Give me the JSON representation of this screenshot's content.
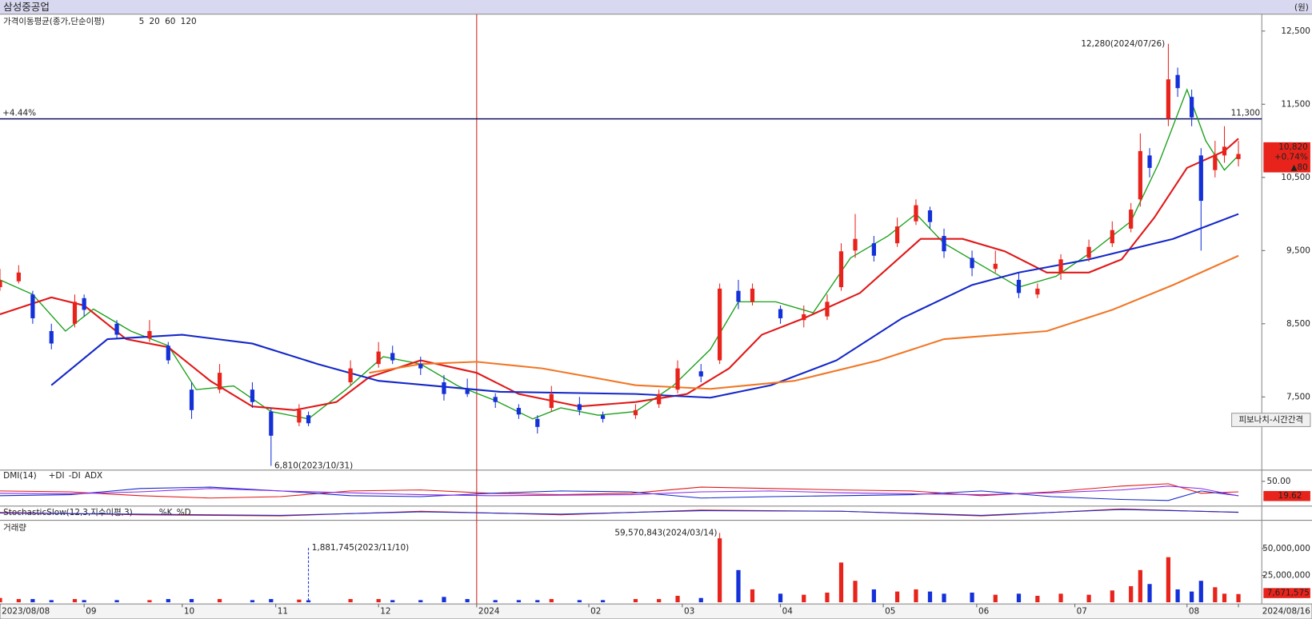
{
  "chart_data": {
    "type": "candlestick",
    "title": "삼성중공업",
    "unit": "(원)",
    "legend_title": "가격이동평균(종가,단순이평)",
    "xlim": [
      0,
      270
    ],
    "xticks": [
      {
        "value": 0,
        "label": "2023/08/08"
      },
      {
        "value": 18,
        "label": "09"
      },
      {
        "value": 39,
        "label": "10"
      },
      {
        "value": 59,
        "label": "11"
      },
      {
        "value": 81,
        "label": "12"
      },
      {
        "value": 102,
        "label": "2024"
      },
      {
        "value": 126,
        "label": "02"
      },
      {
        "value": 146,
        "label": "03"
      },
      {
        "value": 167,
        "label": "04"
      },
      {
        "value": 189,
        "label": "05"
      },
      {
        "value": 209,
        "label": "06"
      },
      {
        "value": 230,
        "label": "07"
      },
      {
        "value": 254,
        "label": "08"
      },
      {
        "value": 265,
        "label": "2024/08/16"
      }
    ],
    "ylim": [
      6500,
      12730
    ],
    "yticks": [
      {
        "value": 12500,
        "label": "12,500"
      },
      {
        "value": 11500,
        "label": "11,500"
      },
      {
        "value": 10500,
        "label": "10,500"
      },
      {
        "value": 9500,
        "label": "9,500"
      },
      {
        "value": 8500,
        "label": "8,500"
      },
      {
        "value": 7500,
        "label": "7,500"
      }
    ],
    "up_color": "#e8231b",
    "down_color": "#1430d8",
    "candles": {
      "x": [
        0,
        4,
        7,
        11,
        16,
        18,
        25,
        32,
        36,
        41,
        47,
        54,
        58,
        64,
        66,
        75,
        81,
        84,
        90,
        95,
        100,
        106,
        111,
        115,
        118,
        124,
        129,
        136,
        141,
        145,
        150,
        154,
        158,
        161,
        167,
        172,
        177,
        180,
        183,
        187,
        192,
        196,
        199,
        202,
        208,
        213,
        218,
        222,
        227,
        233,
        238,
        242,
        244,
        246,
        250,
        252,
        255,
        257,
        260,
        262,
        265
      ],
      "open": [
        9000,
        9080,
        8900,
        8400,
        8500,
        8850,
        8500,
        8300,
        8200,
        7600,
        7600,
        7600,
        7300,
        7150,
        7250,
        7700,
        7950,
        8100,
        7950,
        7700,
        7600,
        7500,
        7350,
        7200,
        7350,
        7400,
        7250,
        7250,
        7400,
        7600,
        7850,
        8000,
        8950,
        8800,
        8700,
        8550,
        8600,
        9000,
        9500,
        9600,
        9600,
        9900,
        10050,
        9700,
        9400,
        9250,
        9100,
        8900,
        9200,
        9400,
        9600,
        9800,
        10200,
        10800,
        11300,
        11900,
        11600,
        10800,
        10600,
        10800,
        10750
      ],
      "high": [
        9250,
        9300,
        8950,
        8500,
        8900,
        8900,
        8550,
        8550,
        8250,
        7700,
        7950,
        7700,
        7350,
        7400,
        7300,
        8000,
        8250,
        8200,
        8050,
        7800,
        7750,
        7550,
        7400,
        7250,
        7650,
        7500,
        7300,
        7400,
        7600,
        8000,
        7950,
        9050,
        9100,
        9050,
        8750,
        8750,
        8900,
        9600,
        10000,
        9700,
        9950,
        10200,
        10100,
        9800,
        9500,
        9500,
        9200,
        9050,
        9450,
        9650,
        9900,
        10150,
        11100,
        10900,
        12280,
        12000,
        11700,
        10900,
        11000,
        11200,
        11000
      ],
      "low": [
        8950,
        9050,
        8500,
        8150,
        8450,
        8600,
        8300,
        8250,
        7950,
        7200,
        7550,
        7350,
        6810,
        7100,
        7100,
        7650,
        7900,
        7950,
        7800,
        7450,
        7500,
        7350,
        7200,
        7000,
        7300,
        7250,
        7150,
        7200,
        7350,
        7550,
        7700,
        7950,
        8700,
        8750,
        8500,
        8450,
        8550,
        8950,
        9400,
        9350,
        9550,
        9850,
        9800,
        9400,
        9150,
        9200,
        8850,
        8850,
        9100,
        9350,
        9550,
        9750,
        10100,
        10500,
        11200,
        11600,
        11200,
        9500,
        10500,
        10700,
        10650
      ],
      "close": [
        9090,
        9200,
        8575,
        8230,
        8800,
        8690,
        8350,
        8400,
        8000,
        7320,
        7830,
        7430,
        6970,
        7320,
        7140,
        7890,
        8120,
        8000,
        7890,
        7540,
        7540,
        7430,
        7260,
        7090,
        7540,
        7320,
        7200,
        7320,
        7540,
        7890,
        7780,
        8980,
        8800,
        8980,
        8575,
        8630,
        8800,
        9490,
        9660,
        9430,
        9830,
        10120,
        9890,
        9490,
        9260,
        9320,
        8920,
        8980,
        9380,
        9550,
        9780,
        10060,
        10860,
        10630,
        11840,
        11720,
        11320,
        10180,
        10810,
        10920,
        10820
      ]
    },
    "series": [
      {
        "name": "5",
        "color": "#1aa01a",
        "x": [
          0,
          7,
          14,
          20,
          28,
          36,
          42,
          50,
          58,
          66,
          74,
          82,
          90,
          98,
          106,
          114,
          120,
          128,
          136,
          144,
          152,
          158,
          166,
          174,
          182,
          190,
          196,
          202,
          210,
          218,
          226,
          234,
          242,
          248,
          254,
          258,
          262,
          265
        ],
        "values": [
          9100,
          8900,
          8400,
          8700,
          8400,
          8200,
          7600,
          7650,
          7300,
          7200,
          7600,
          8050,
          7950,
          7650,
          7450,
          7200,
          7350,
          7250,
          7300,
          7650,
          8150,
          8800,
          8800,
          8650,
          9400,
          9700,
          10000,
          9600,
          9300,
          9000,
          9150,
          9500,
          9900,
          10700,
          11700,
          11000,
          10600,
          10800
        ]
      },
      {
        "name": "20",
        "color": "#e01818",
        "x": [
          0,
          11,
          18,
          27,
          36,
          45,
          54,
          63,
          72,
          79,
          90,
          102,
          111,
          124,
          136,
          147,
          156,
          163,
          172,
          184,
          197,
          206,
          215,
          224,
          233,
          240,
          247,
          254,
          262,
          265
        ],
        "values": [
          8630,
          8860,
          8750,
          8290,
          8180,
          7720,
          7370,
          7320,
          7430,
          7770,
          8000,
          7830,
          7540,
          7370,
          7430,
          7540,
          7890,
          8350,
          8575,
          8920,
          9660,
          9660,
          9490,
          9200,
          9200,
          9380,
          9950,
          10630,
          10860,
          11030
        ]
      },
      {
        "name": "60",
        "color": "#1428c8",
        "x": [
          11,
          23,
          39,
          54,
          68,
          81,
          107,
          136,
          152,
          165,
          179,
          193,
          208,
          218,
          233,
          251,
          265
        ],
        "values": [
          7660,
          8290,
          8350,
          8230,
          7950,
          7720,
          7570,
          7540,
          7490,
          7660,
          8000,
          8575,
          9030,
          9200,
          9380,
          9660,
          10000
        ]
      },
      {
        "name": "120",
        "color": "#f07828",
        "x": [
          79,
          90,
          102,
          116,
          136,
          152,
          170,
          188,
          202,
          224,
          238,
          251,
          265
        ],
        "values": [
          7830,
          7950,
          7980,
          7890,
          7660,
          7610,
          7720,
          8000,
          8290,
          8400,
          8690,
          9030,
          9430
        ]
      }
    ],
    "price_line": {
      "value": 11300,
      "label": "11,300",
      "change": "+4.44%"
    },
    "last_price": {
      "value": 10820,
      "label": "10,820",
      "change": "+0.74%",
      "diff": "▲80"
    },
    "annotations": [
      {
        "x": 250,
        "value": 12280,
        "label": "12,280(2024/07/26)"
      },
      {
        "x": 58,
        "value": 6810,
        "label": "6,810(2023/10/31)"
      }
    ],
    "marker_x": 102,
    "button": "피보나치-시간간격",
    "dmi": {
      "title": "DMI(14)",
      "ylim": [
        0,
        70
      ],
      "yticks": [
        {
          "value": 50,
          "label": "50.00"
        }
      ],
      "last_label": "19.62",
      "x": [
        0,
        15,
        30,
        45,
        60,
        75,
        90,
        105,
        120,
        135,
        150,
        165,
        180,
        195,
        210,
        225,
        240,
        250,
        257,
        265
      ],
      "series": [
        {
          "name": "+DI",
          "color": "#e01818",
          "values": [
            30,
            28,
            20,
            15,
            18,
            30,
            32,
            25,
            22,
            25,
            38,
            35,
            32,
            30,
            20,
            28,
            40,
            45,
            25,
            28
          ]
        },
        {
          "name": "-DI",
          "color": "#1428c8",
          "values": [
            20,
            22,
            35,
            38,
            30,
            20,
            18,
            25,
            30,
            28,
            15,
            18,
            20,
            22,
            30,
            18,
            12,
            10,
            30,
            20
          ]
        },
        {
          "name": "ADX",
          "color": "#8a2be2",
          "values": [
            25,
            24,
            28,
            35,
            30,
            26,
            22,
            20,
            21,
            22,
            28,
            30,
            26,
            24,
            22,
            26,
            32,
            40,
            35,
            19.62
          ]
        }
      ]
    },
    "stochastic": {
      "title": "StochasticSlow(12,3,지수이평,3)",
      "ylim": [
        0,
        100
      ],
      "x": [
        0,
        30,
        60,
        90,
        120,
        150,
        180,
        210,
        240,
        265
      ],
      "series": [
        {
          "name": "%K",
          "color": "#e01818",
          "values": [
            60,
            40,
            30,
            70,
            40,
            80,
            70,
            30,
            90,
            60
          ]
        },
        {
          "name": "%D",
          "color": "#1428c8",
          "values": [
            55,
            45,
            35,
            65,
            45,
            75,
            70,
            35,
            85,
            62
          ]
        }
      ]
    },
    "volume": {
      "title": "거래량",
      "ylim": [
        0,
        74000000
      ],
      "yticks": [
        {
          "value": 50000000,
          "label": "50,000,000"
        },
        {
          "value": 25000000,
          "label": "25,000,000"
        }
      ],
      "last_label": "7,671,575",
      "values": [
        4000000,
        3000000,
        3000000,
        2000000,
        3000000,
        2000000,
        2000000,
        2000000,
        3000000,
        3000000,
        3000000,
        2000000,
        3000000,
        2500000,
        1881745,
        3000000,
        3000000,
        2000000,
        2000000,
        5000000,
        3000000,
        2000000,
        2000000,
        2000000,
        3000000,
        2000000,
        2000000,
        3000000,
        3000000,
        6000000,
        4000000,
        59570843,
        30000000,
        12000000,
        8000000,
        7000000,
        9000000,
        37000000,
        20000000,
        12000000,
        10000000,
        12000000,
        10000000,
        8000000,
        9000000,
        7000000,
        8000000,
        6000000,
        8000000,
        7000000,
        11000000,
        15000000,
        30000000,
        17000000,
        42000000,
        12000000,
        10000000,
        20000000,
        14000000,
        8000000,
        7671575
      ],
      "annotations": [
        {
          "index": 31,
          "label": "59,570,843(2024/03/14)"
        },
        {
          "index": 14,
          "label": "1,881,745(2023/11/10)"
        }
      ]
    }
  }
}
